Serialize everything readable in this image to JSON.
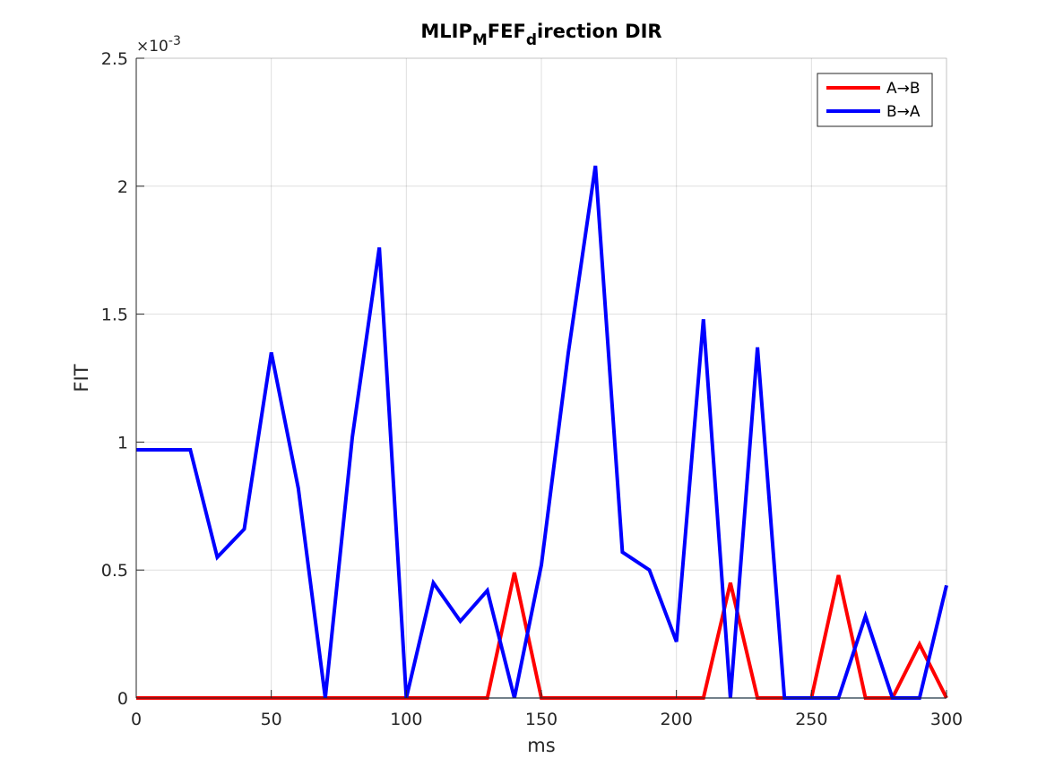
{
  "chart_data": {
    "type": "line",
    "title": {
      "main": "MLIP",
      "sub1": "M",
      "mid": "FEF",
      "sub2": "d",
      "tail": "irection DIR"
    },
    "xlabel": "ms",
    "ylabel": "FIT",
    "y_exponent": {
      "base": "×10",
      "power": "-3"
    },
    "xlim": [
      0,
      300
    ],
    "ylim": [
      0,
      0.0025
    ],
    "x_ticks": [
      0,
      50,
      100,
      150,
      200,
      250,
      300
    ],
    "x_tick_labels": [
      "0",
      "50",
      "100",
      "150",
      "200",
      "250",
      "300"
    ],
    "y_ticks": [
      0,
      0.0005,
      0.001,
      0.0015,
      0.002,
      0.0025
    ],
    "y_tick_labels": [
      "0",
      "0.5",
      "1",
      "1.5",
      "2",
      "2.5"
    ],
    "grid": true,
    "legend_position": "top-right",
    "x": [
      0,
      10,
      20,
      30,
      40,
      50,
      60,
      70,
      80,
      90,
      100,
      110,
      120,
      130,
      140,
      150,
      160,
      170,
      180,
      190,
      200,
      210,
      220,
      230,
      240,
      250,
      260,
      270,
      280,
      290,
      300
    ],
    "series": [
      {
        "name": "A→B",
        "color": "#ff0000",
        "values": [
          0,
          0,
          0,
          0,
          0,
          0,
          0,
          0,
          0,
          0,
          0,
          0,
          0,
          0,
          0.00049,
          0,
          0,
          0,
          0,
          0,
          0,
          0,
          0.00045,
          0,
          0,
          0,
          0.00048,
          0,
          0,
          0.00021,
          0
        ]
      },
      {
        "name": "B→A",
        "color": "#0000ff",
        "values": [
          0.00097,
          0.00097,
          0.00097,
          0.00055,
          0.00066,
          0.00135,
          0.00082,
          0,
          0.00102,
          0.00176,
          0,
          0.00045,
          0.0003,
          0.00042,
          0,
          0.00052,
          0.00135,
          0.00208,
          0.00057,
          0.0005,
          0.00022,
          0.00148,
          0,
          0.00137,
          0,
          0,
          0,
          0.00032,
          0,
          0,
          0.00044
        ]
      }
    ],
    "baseline_color": "#0072bd"
  }
}
